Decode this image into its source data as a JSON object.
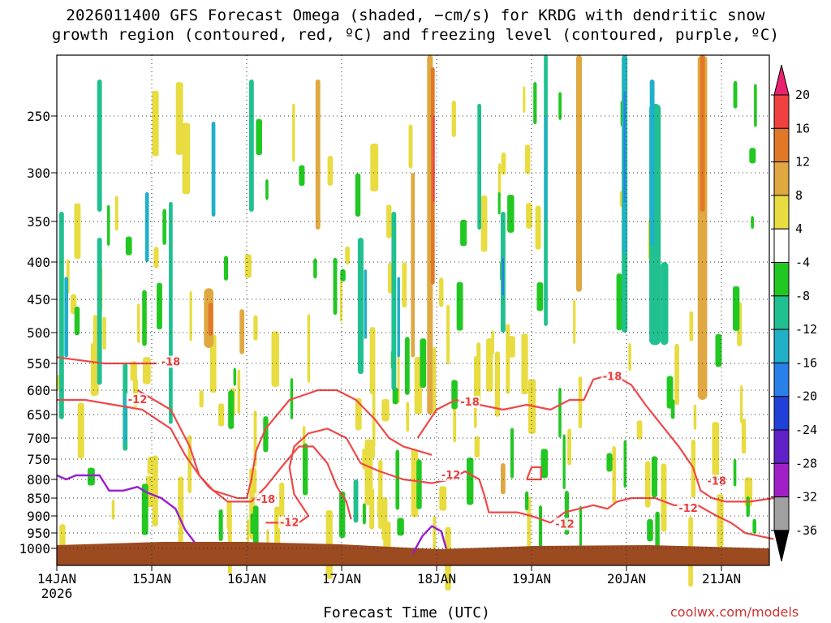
{
  "chart_data": {
    "type": "heatmap",
    "title_line1": "2026011400 GFS Forecast Omega (shaded, −cm/s) for KRDG with dendritic snow",
    "title_line2": "growth region (contoured, red, ºC) and freezing level (contoured, purple, ºC)",
    "xlabel": "Forecast Time (UTC)",
    "ylabel": "",
    "x_ticks": [
      "14JAN",
      "15JAN",
      "16JAN",
      "17JAN",
      "18JAN",
      "19JAN",
      "20JAN",
      "21JAN"
    ],
    "x_year": "2026",
    "x_range_days": [
      0,
      7.55
    ],
    "y_ticks": [
      250,
      300,
      350,
      400,
      450,
      500,
      550,
      600,
      650,
      700,
      750,
      800,
      850,
      900,
      950,
      1000
    ],
    "y_ticks_labels": [
      "250",
      "300",
      "350",
      "400",
      "450",
      "500",
      "550",
      "600",
      "650",
      "700",
      "750",
      "800",
      "850",
      "900",
      "950",
      "1000"
    ],
    "y_range_hpa": [
      200,
      1013
    ],
    "colorbar": {
      "labels": [
        "20",
        "16",
        "12",
        "8",
        "4",
        "-4",
        "-8",
        "-12",
        "-16",
        "-20",
        "-24",
        "-28",
        "-32",
        "-36"
      ],
      "colors": [
        "#e8226e",
        "#f04040",
        "#e07828",
        "#e0a840",
        "#e8dc40",
        "#ffffff",
        "#22c822",
        "#20c090",
        "#20b0c8",
        "#2880e8",
        "#2040d8",
        "#6020c8",
        "#a020c8",
        "#a0a0a0",
        "#000000"
      ]
    },
    "omega_blobs": [
      {
        "day": 0.05,
        "p": 500,
        "dday": 0.05,
        "dp": 160,
        "v": -8
      },
      {
        "day": 0.1,
        "p": 480,
        "dday": 0.04,
        "dp": 60,
        "v": -12
      },
      {
        "day": 0.45,
        "p": 480,
        "dday": 0.05,
        "dp": 110,
        "v": -8
      },
      {
        "day": 0.45,
        "p": 280,
        "dday": 0.05,
        "dp": 60,
        "v": -8
      },
      {
        "day": 0.72,
        "p": 640,
        "dday": 0.05,
        "dp": 90,
        "v": -8
      },
      {
        "day": 0.72,
        "p": 660,
        "dday": 0.03,
        "dp": 50,
        "v": -12
      },
      {
        "day": 0.95,
        "p": 360,
        "dday": 0.04,
        "dp": 40,
        "v": -12
      },
      {
        "day": 1.2,
        "p": 500,
        "dday": 0.04,
        "dp": 170,
        "v": -8
      },
      {
        "day": 1.6,
        "p": 480,
        "dday": 0.1,
        "dp": 45,
        "v": 8
      },
      {
        "day": 1.62,
        "p": 480,
        "dday": 0.05,
        "dp": 25,
        "v": 12
      },
      {
        "day": 1.95,
        "p": 500,
        "dday": 0.05,
        "dp": 35,
        "v": 8
      },
      {
        "day": 1.65,
        "p": 300,
        "dday": 0.04,
        "dp": 45,
        "v": -12
      },
      {
        "day": 2.05,
        "p": 280,
        "dday": 0.05,
        "dp": 60,
        "v": -8
      },
      {
        "day": 2.75,
        "p": 290,
        "dday": 0.05,
        "dp": 70,
        "v": 8
      },
      {
        "day": 3.15,
        "p": 860,
        "dday": 0.05,
        "dp": 60,
        "v": -8
      },
      {
        "day": 3.2,
        "p": 470,
        "dday": 0.06,
        "dp": 100,
        "v": -8
      },
      {
        "day": 3.25,
        "p": 460,
        "dday": 0.03,
        "dp": 50,
        "v": -12
      },
      {
        "day": 3.55,
        "p": 470,
        "dday": 0.05,
        "dp": 130,
        "v": -8
      },
      {
        "day": 3.6,
        "p": 480,
        "dday": 0.03,
        "dp": 60,
        "v": -12
      },
      {
        "day": 3.75,
        "p": 420,
        "dday": 0.04,
        "dp": 120,
        "v": 8
      },
      {
        "day": 3.93,
        "p": 420,
        "dday": 0.06,
        "dp": 230,
        "v": 8
      },
      {
        "day": 3.96,
        "p": 320,
        "dday": 0.04,
        "dp": 110,
        "v": 12
      },
      {
        "day": 3.97,
        "p": 290,
        "dday": 0.02,
        "dp": 40,
        "v": 16
      },
      {
        "day": 4.45,
        "p": 300,
        "dday": 0.04,
        "dp": 60,
        "v": -8
      },
      {
        "day": 4.7,
        "p": 420,
        "dday": 0.05,
        "dp": 80,
        "v": -8
      },
      {
        "day": 4.7,
        "p": 420,
        "dday": 0.02,
        "dp": 25,
        "v": -16
      },
      {
        "day": 4.7,
        "p": 800,
        "dday": 0.05,
        "dp": 40,
        "v": 8
      },
      {
        "day": 5.15,
        "p": 340,
        "dday": 0.04,
        "dp": 150,
        "v": -8
      },
      {
        "day": 5.15,
        "p": 300,
        "dday": 0.03,
        "dp": 50,
        "v": -12
      },
      {
        "day": 5.5,
        "p": 300,
        "dday": 0.06,
        "dp": 140,
        "v": 8
      },
      {
        "day": 5.98,
        "p": 280,
        "dday": 0.06,
        "dp": 220,
        "v": -8
      },
      {
        "day": 5.98,
        "p": 280,
        "dday": 0.04,
        "dp": 110,
        "v": -12
      },
      {
        "day": 5.98,
        "p": 280,
        "dday": 0.02,
        "dp": 50,
        "v": -16
      },
      {
        "day": 6.3,
        "p": 380,
        "dday": 0.12,
        "dp": 140,
        "v": -8
      },
      {
        "day": 6.27,
        "p": 300,
        "dday": 0.05,
        "dp": 80,
        "v": -12
      },
      {
        "day": 6.4,
        "p": 460,
        "dday": 0.08,
        "dp": 60,
        "v": -8
      },
      {
        "day": 6.8,
        "p": 400,
        "dday": 0.1,
        "dp": 220,
        "v": 8
      },
      {
        "day": 6.8,
        "p": 270,
        "dday": 0.05,
        "dp": 70,
        "v": 12
      }
    ],
    "dgz_contours": [
      {
        "label": "-18",
        "points": [
          [
            0,
            540
          ],
          [
            0.5,
            550
          ],
          [
            1.05,
            550
          ]
        ]
      },
      {
        "label": "-12",
        "points": [
          [
            0,
            620
          ],
          [
            0.3,
            620
          ],
          [
            0.6,
            630
          ],
          [
            0.9,
            640
          ],
          [
            1.2,
            680
          ],
          [
            1.35,
            740
          ],
          [
            1.5,
            790
          ],
          [
            1.6,
            820
          ],
          [
            1.8,
            860
          ],
          [
            2.05,
            860
          ],
          [
            2.2,
            820
          ],
          [
            2.4,
            760
          ],
          [
            2.55,
            720
          ],
          [
            2.7,
            720
          ],
          [
            2.85,
            760
          ],
          [
            2.95,
            820
          ],
          [
            3.05,
            860
          ],
          [
            3.1,
            910
          ]
        ]
      },
      {
        "label": "-18",
        "points": [
          [
            0.85,
            600
          ],
          [
            1.2,
            640
          ],
          [
            1.4,
            720
          ],
          [
            1.5,
            790
          ],
          [
            1.65,
            830
          ],
          [
            1.9,
            850
          ],
          [
            2.0,
            850
          ],
          [
            2.05,
            800
          ],
          [
            2.1,
            730
          ],
          [
            2.2,
            680
          ],
          [
            2.45,
            620
          ],
          [
            2.75,
            600
          ],
          [
            2.95,
            600
          ],
          [
            3.15,
            620
          ],
          [
            3.35,
            660
          ],
          [
            3.5,
            700
          ],
          [
            3.65,
            720
          ],
          [
            3.8,
            730
          ],
          [
            3.95,
            740
          ]
        ]
      },
      {
        "label": "-12",
        "points": [
          [
            2.2,
            920
          ],
          [
            2.55,
            920
          ],
          [
            2.65,
            900
          ],
          [
            2.5,
            840
          ],
          [
            2.45,
            770
          ],
          [
            2.5,
            720
          ],
          [
            2.65,
            690
          ],
          [
            2.85,
            680
          ],
          [
            3.05,
            700
          ],
          [
            3.2,
            760
          ],
          [
            3.4,
            780
          ],
          [
            3.65,
            800
          ],
          [
            3.95,
            810
          ],
          [
            4.15,
            800
          ],
          [
            4.3,
            780
          ],
          [
            4.45,
            800
          ],
          [
            4.5,
            840
          ],
          [
            4.55,
            890
          ],
          [
            4.7,
            890
          ],
          [
            4.85,
            890
          ],
          [
            5.0,
            900
          ],
          [
            5.2,
            920
          ]
        ]
      },
      {
        "label": "-18",
        "points": [
          [
            3.8,
            700
          ],
          [
            4.0,
            640
          ],
          [
            4.2,
            620
          ],
          [
            4.45,
            630
          ],
          [
            4.7,
            640
          ],
          [
            4.95,
            630
          ],
          [
            5.2,
            640
          ],
          [
            5.4,
            620
          ],
          [
            5.55,
            620
          ],
          [
            5.65,
            580
          ],
          [
            5.85,
            570
          ],
          [
            6.05,
            590
          ],
          [
            6.2,
            630
          ],
          [
            6.4,
            680
          ],
          [
            6.55,
            720
          ],
          [
            6.7,
            770
          ],
          [
            6.78,
            830
          ],
          [
            6.9,
            850
          ],
          [
            7.05,
            860
          ],
          [
            7.3,
            860
          ],
          [
            7.55,
            850
          ]
        ]
      },
      {
        "label": "-12",
        "points": [
          [
            5.2,
            920
          ],
          [
            5.35,
            890
          ],
          [
            5.5,
            880
          ],
          [
            5.65,
            870
          ],
          [
            5.8,
            880
          ],
          [
            5.9,
            860
          ],
          [
            6.05,
            850
          ],
          [
            6.3,
            850
          ],
          [
            6.5,
            870
          ],
          [
            6.75,
            870
          ],
          [
            6.95,
            900
          ],
          [
            7.1,
            920
          ],
          [
            7.25,
            950
          ],
          [
            7.4,
            960
          ],
          [
            7.55,
            970
          ]
        ]
      },
      {
        "label": "",
        "points": [
          [
            4.95,
            800
          ],
          [
            5.0,
            770
          ],
          [
            5.1,
            770
          ],
          [
            5.1,
            800
          ],
          [
            4.95,
            800
          ]
        ]
      }
    ],
    "freezing_contours": [
      {
        "label": "",
        "points": [
          [
            0,
            790
          ],
          [
            0.1,
            800
          ],
          [
            0.2,
            790
          ],
          [
            0.45,
            790
          ],
          [
            0.55,
            830
          ],
          [
            0.7,
            830
          ],
          [
            0.85,
            820
          ],
          [
            0.95,
            835
          ],
          [
            1.1,
            850
          ],
          [
            1.25,
            880
          ],
          [
            1.35,
            940
          ],
          [
            1.45,
            980
          ]
        ]
      },
      {
        "label": "",
        "points": [
          [
            3.75,
            1010
          ],
          [
            3.85,
            960
          ],
          [
            3.95,
            930
          ],
          [
            4.05,
            945
          ],
          [
            4.1,
            1000
          ]
        ]
      }
    ],
    "contour_labels": [
      {
        "text": "-18",
        "day": 1.1,
        "p": 548
      },
      {
        "text": "-12",
        "day": 0.75,
        "p": 620
      },
      {
        "text": "-18",
        "day": 2.1,
        "p": 855
      },
      {
        "text": "-12",
        "day": 2.35,
        "p": 920
      },
      {
        "text": "-18",
        "day": 4.25,
        "p": 625
      },
      {
        "text": "-12",
        "day": 4.05,
        "p": 790
      },
      {
        "text": "-18",
        "day": 5.75,
        "p": 575
      },
      {
        "text": "-12",
        "day": 5.25,
        "p": 925
      },
      {
        "text": "-12",
        "day": 6.55,
        "p": 880
      },
      {
        "text": "-18",
        "day": 6.85,
        "p": 805
      }
    ]
  },
  "credit": "coolwx.com/models"
}
